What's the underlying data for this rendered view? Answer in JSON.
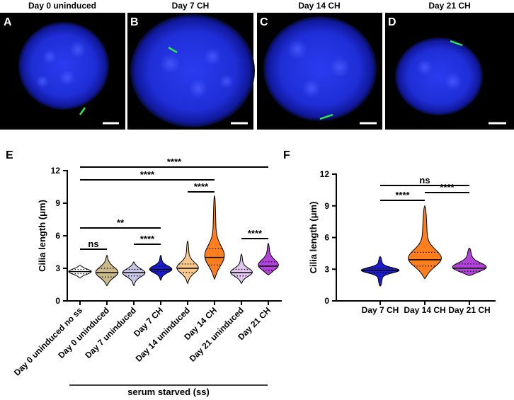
{
  "images": [
    {
      "letter": "A",
      "title": "Day 0 uninduced"
    },
    {
      "letter": "B",
      "title": "Day 7 CH"
    },
    {
      "letter": "C",
      "title": "Day 14 CH"
    },
    {
      "letter": "D",
      "title": "Day 21 CH"
    }
  ],
  "chart_data": [
    {
      "type": "violin",
      "panel": "E",
      "ylabel": "Cilia length (μm)",
      "categories": [
        "Day 0 uninduced no ss",
        "Day 0 uninduced",
        "Day 7 uninduced",
        "Day 7 CH",
        "Day 14 uninduced",
        "Day 14 CH",
        "Day 21 uninduced",
        "Day 21 CH"
      ],
      "colors": [
        "#ffffff",
        "#c9b98b",
        "#c9c5e6",
        "#1c1ccf",
        "#f8c78c",
        "#ff7f1e",
        "#e2c6f0",
        "#b143d8"
      ],
      "min": [
        2.1,
        1.4,
        1.4,
        1.9,
        1.6,
        2.0,
        1.6,
        2.4
      ],
      "q1": [
        2.5,
        2.2,
        2.3,
        2.7,
        2.6,
        3.3,
        2.3,
        2.8
      ],
      "median": [
        2.7,
        2.6,
        2.6,
        2.9,
        3.0,
        4.0,
        2.6,
        3.2
      ],
      "q3": [
        2.9,
        3.0,
        2.9,
        3.2,
        3.4,
        4.8,
        2.9,
        3.6
      ],
      "max": [
        3.3,
        4.2,
        3.6,
        4.2,
        5.5,
        9.7,
        4.3,
        5.3
      ],
      "ylim": [
        0,
        12
      ],
      "yticks": [
        0,
        3,
        6,
        9,
        12
      ],
      "group_label": "serum starved (ss)",
      "comparisons": [
        {
          "between": [
            "Day 0 uninduced no ss",
            "Day 21 CH"
          ],
          "label": "****"
        },
        {
          "between": [
            "Day 0 uninduced no ss",
            "Day 14 CH"
          ],
          "label": "****"
        },
        {
          "between": [
            "Day 14 uninduced",
            "Day 14 CH"
          ],
          "label": "****"
        },
        {
          "between": [
            "Day 0 uninduced no ss",
            "Day 7 CH"
          ],
          "label": "**"
        },
        {
          "between": [
            "Day 21 uninduced",
            "Day 21 CH"
          ],
          "label": "****"
        },
        {
          "between": [
            "Day 7 uninduced",
            "Day 7 CH"
          ],
          "label": "****"
        },
        {
          "between": [
            "Day 0 uninduced no ss",
            "Day 0 uninduced"
          ],
          "label": "ns"
        }
      ]
    },
    {
      "type": "violin",
      "panel": "F",
      "ylabel": "Cilia length (μm)",
      "categories": [
        "Day 7 CH",
        "Day 14 CH",
        "Day 21 CH"
      ],
      "colors": [
        "#1c1ccf",
        "#ff7f1e",
        "#b143d8"
      ],
      "min": [
        1.4,
        2.1,
        2.4
      ],
      "q1": [
        2.7,
        3.3,
        2.8
      ],
      "median": [
        2.9,
        3.9,
        3.1
      ],
      "q3": [
        3.1,
        4.6,
        3.5
      ],
      "max": [
        4.2,
        9.0,
        5.0
      ],
      "ylim": [
        0,
        12
      ],
      "yticks": [
        0,
        3,
        6,
        9,
        12
      ],
      "comparisons": [
        {
          "between": [
            "Day 7 CH",
            "Day 21 CH"
          ],
          "label": "ns"
        },
        {
          "between": [
            "Day 14 CH",
            "Day 21 CH"
          ],
          "label": "****"
        },
        {
          "between": [
            "Day 7 CH",
            "Day 14 CH"
          ],
          "label": "****"
        }
      ]
    }
  ]
}
